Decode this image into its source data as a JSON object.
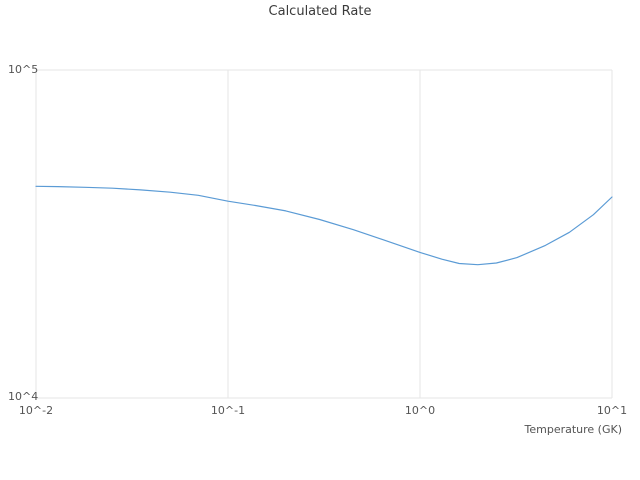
{
  "chart_data": {
    "type": "line",
    "title": "Calculated Rate",
    "xlabel": "Temperature (GK)",
    "ylabel": "",
    "x_scale": "log",
    "y_scale": "log",
    "xlim": [
      0.01,
      10
    ],
    "ylim": [
      10000,
      100000
    ],
    "grid": true,
    "legend": "none",
    "xtick_labels": [
      "10^-2",
      "10^-1",
      "10^0",
      "10^1"
    ],
    "ytick_labels": [
      "10^5",
      "10^4"
    ],
    "line_color": "#5b9bd5",
    "series": [
      {
        "name": "calculated-rate",
        "x": [
          0.01,
          0.013,
          0.018,
          0.025,
          0.035,
          0.05,
          0.07,
          0.1,
          0.14,
          0.2,
          0.3,
          0.45,
          0.65,
          1.0,
          1.3,
          1.6,
          2.0,
          2.5,
          3.2,
          4.5,
          6.0,
          8.0,
          10.0
        ],
        "y": [
          44200,
          44100,
          43900,
          43600,
          43100,
          42400,
          41500,
          39800,
          38600,
          37200,
          35000,
          32600,
          30300,
          27800,
          26500,
          25700,
          25500,
          25800,
          26800,
          29200,
          32000,
          36200,
          41000
        ]
      }
    ]
  }
}
